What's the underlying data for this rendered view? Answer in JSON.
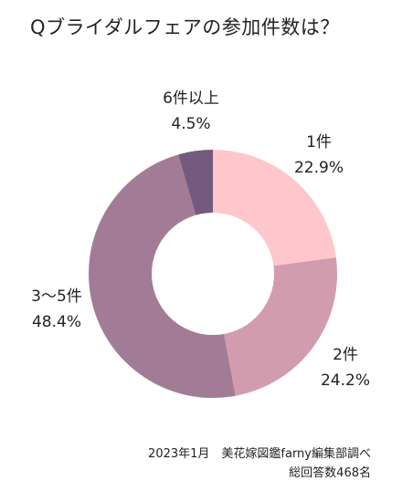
{
  "chart_data": {
    "type": "pie",
    "title": "Qブライダルフェアの参加件数は？",
    "donut": true,
    "slices": [
      {
        "label": "1件",
        "value": 22.9,
        "value_label": "22.9%",
        "color": "#FFC6CB"
      },
      {
        "label": "2件",
        "value": 24.2,
        "value_label": "24.2%",
        "color": "#D29CAF"
      },
      {
        "label": "3〜5件",
        "value": 48.4,
        "value_label": "48.4%",
        "color": "#A27C97"
      },
      {
        "label": "6件以上",
        "value": 4.5,
        "value_label": "4.5%",
        "color": "#735A7E"
      }
    ]
  },
  "footer": {
    "source": "2023年1月　美花嫁図鑑farny編集部調べ",
    "responses": "総回答数468名"
  }
}
